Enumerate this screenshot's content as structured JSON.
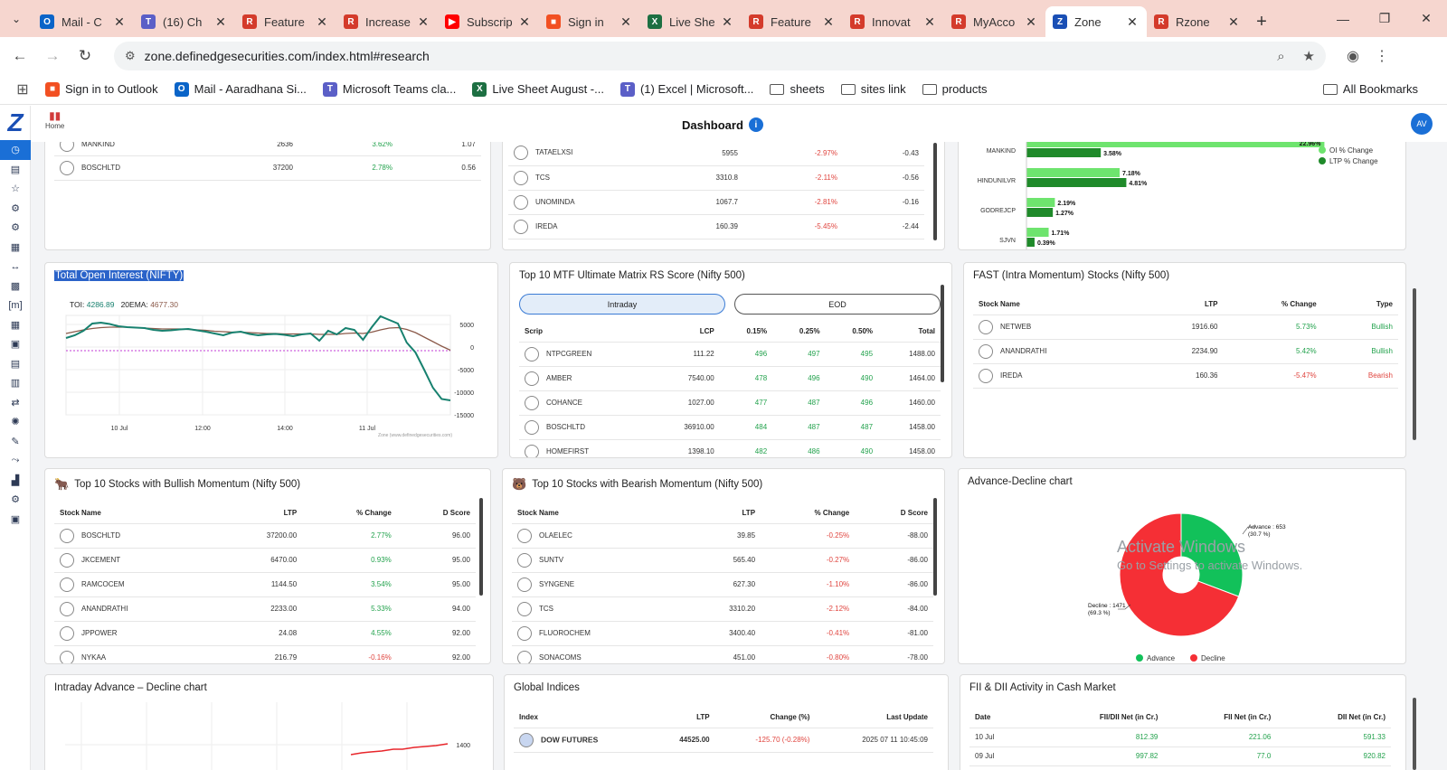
{
  "browser": {
    "tabs": [
      {
        "label": "Mail - C",
        "icon": "outlook-icon",
        "color": "#0a64c8",
        "glyph": "O"
      },
      {
        "label": "(16) Ch",
        "icon": "teams-icon",
        "color": "#5b5fc7",
        "glyph": "T"
      },
      {
        "label": "Feature",
        "icon": "zone-app-icon",
        "color": "#d43b2b",
        "glyph": "R"
      },
      {
        "label": "Increase",
        "icon": "zone-app-icon",
        "color": "#d43b2b",
        "glyph": "R"
      },
      {
        "label": "Subscrip",
        "icon": "youtube-icon",
        "color": "#ff0000",
        "glyph": "▶"
      },
      {
        "label": "Sign in",
        "icon": "microsoft-icon",
        "color": "#f25022",
        "glyph": "■"
      },
      {
        "label": "Live She",
        "icon": "excel-icon",
        "color": "#1d6f42",
        "glyph": "X"
      },
      {
        "label": "Feature",
        "icon": "zone-app-icon",
        "color": "#d43b2b",
        "glyph": "R"
      },
      {
        "label": "Innovat",
        "icon": "zone-app-icon",
        "color": "#d43b2b",
        "glyph": "R"
      },
      {
        "label": "MyAcco",
        "icon": "zone-app-icon",
        "color": "#d43b2b",
        "glyph": "R"
      },
      {
        "label": "Zone",
        "icon": "zone-logo-icon",
        "color": "#1a4fb5",
        "glyph": "Z",
        "active": true
      },
      {
        "label": "Rzone",
        "icon": "zone-app-icon",
        "color": "#d43b2b",
        "glyph": "R"
      }
    ],
    "url": "zone.definedgesecurities.com/index.html#research",
    "bookmarks": [
      {
        "label": "Sign in to Outlook",
        "type": "site",
        "color": "#f25022",
        "glyph": "■"
      },
      {
        "label": "Mail - Aaradhana Si...",
        "type": "site",
        "color": "#0a64c8",
        "glyph": "O"
      },
      {
        "label": "Microsoft Teams cla...",
        "type": "site",
        "color": "#5b5fc7",
        "glyph": "T"
      },
      {
        "label": "Live Sheet August -...",
        "type": "site",
        "color": "#1d6f42",
        "glyph": "X"
      },
      {
        "label": "(1) Excel | Microsoft...",
        "type": "site",
        "color": "#5b5fc7",
        "glyph": "T"
      },
      {
        "label": "sheets",
        "type": "folder"
      },
      {
        "label": "sites link",
        "type": "folder"
      },
      {
        "label": "products",
        "type": "folder"
      }
    ],
    "all_bookmarks": "All Bookmarks"
  },
  "app": {
    "home_label": "Home",
    "title": "Dashboard",
    "avatar": "AV"
  },
  "top_left_partial": {
    "rows": [
      {
        "name": "MANKIND",
        "ltp": "2636",
        "chg": "3.62%",
        "score": "1.07"
      },
      {
        "name": "BOSCHLTD",
        "ltp": "37200",
        "chg": "2.78%",
        "score": "0.56"
      }
    ]
  },
  "top_mid_partial": {
    "rows": [
      {
        "name": "TATAELXSI",
        "ltp": "5955",
        "chg": "-2.97%",
        "score": "-0.43"
      },
      {
        "name": "TCS",
        "ltp": "3310.8",
        "chg": "-2.11%",
        "score": "-0.56"
      },
      {
        "name": "UNOMINDA",
        "ltp": "1067.7",
        "chg": "-2.81%",
        "score": "-0.16"
      },
      {
        "name": "IREDA",
        "ltp": "160.39",
        "chg": "-5.45%",
        "score": "-2.44"
      }
    ]
  },
  "oi_bar_chart": {
    "legend": [
      "OI % Change",
      "LTP % Change"
    ],
    "colors": {
      "oi": "#6ee46e",
      "ltp": "#1f8a2a"
    },
    "rows": [
      {
        "name": "MANKIND",
        "oi": 22.96,
        "ltp": 3.58,
        "oi_label": "22.96%",
        "ltp_label": "3.58%"
      },
      {
        "name": "HINDUNILVR",
        "oi": 7.18,
        "ltp": 4.81,
        "oi_label": "7.18%",
        "ltp_label": "4.81%"
      },
      {
        "name": "GODREJCP",
        "oi": 2.19,
        "ltp": 1.27,
        "oi_label": "2.19%",
        "ltp_label": "1.27%"
      },
      {
        "name": "SJVN",
        "oi": 1.71,
        "ltp": 0.39,
        "oi_label": "1.71%",
        "ltp_label": "0.39%"
      }
    ]
  },
  "toi": {
    "title": "Total Open Interest (NIFTY)",
    "toi_label": "TOI:",
    "toi_value": "4286.89",
    "ema_label": "20EMA:",
    "ema_value": "4677.30",
    "x_ticks": [
      "10 Jul",
      "12:00",
      "14:00",
      "11 Jul"
    ],
    "y_ticks": [
      "5000",
      "0",
      "-5000",
      "-10000",
      "-15000"
    ],
    "credit": "Zone (www.definedgesecurities.com)",
    "colors": {
      "toi": "#17816f",
      "ema": "#8b5a4a",
      "zero": "#c23bd4"
    },
    "toi_series": [
      2000,
      2600,
      3600,
      5200,
      5400,
      5100,
      4600,
      4400,
      4300,
      4200,
      3800,
      3600,
      3700,
      3900,
      4000,
      3700,
      3400,
      3000,
      2600,
      3200,
      3400,
      2900,
      2600,
      2800,
      2900,
      2700,
      2400,
      2800,
      3000,
      1400,
      3600,
      2800,
      4200,
      3800,
      1600,
      4400,
      6800,
      6000,
      5200,
      1000,
      -1200,
      -5000,
      -9000,
      -11500,
      -11800
    ],
    "ema_series": [
      3000,
      3400,
      3800,
      4100,
      4300,
      4400,
      4400,
      4400,
      4300,
      4200,
      4100,
      4000,
      4000,
      4000,
      3900,
      3800,
      3700,
      3500,
      3400,
      3300,
      3300,
      3200,
      3100,
      3000,
      3000,
      2900,
      2900,
      2900,
      2900,
      2800,
      2800,
      2800,
      3000,
      3100,
      3000,
      3300,
      3800,
      4200,
      4300,
      3900,
      3200,
      2200,
      1200,
      200,
      -700
    ]
  },
  "mtf": {
    "title": "Top 10 MTF Ultimate Matrix RS Score (Nifty 500)",
    "toggle_intraday": "Intraday",
    "toggle_eod": "EOD",
    "headers": [
      "Scrip",
      "LCP",
      "0.15%",
      "0.25%",
      "0.50%",
      "Total"
    ],
    "rows": [
      {
        "name": "NTPCGREEN",
        "lcp": "111.22",
        "a": "496",
        "b": "497",
        "c": "495",
        "total": "1488.00"
      },
      {
        "name": "AMBER",
        "lcp": "7540.00",
        "a": "478",
        "b": "496",
        "c": "490",
        "total": "1464.00"
      },
      {
        "name": "COHANCE",
        "lcp": "1027.00",
        "a": "477",
        "b": "487",
        "c": "496",
        "total": "1460.00"
      },
      {
        "name": "BOSCHLTD",
        "lcp": "36910.00",
        "a": "484",
        "b": "487",
        "c": "487",
        "total": "1458.00"
      },
      {
        "name": "HOMEFIRST",
        "lcp": "1398.10",
        "a": "482",
        "b": "486",
        "c": "490",
        "total": "1458.00"
      }
    ]
  },
  "fast": {
    "title": "FAST (Intra Momentum) Stocks (Nifty 500)",
    "headers": [
      "Stock Name",
      "LTP",
      "% Change",
      "Type"
    ],
    "rows": [
      {
        "name": "NETWEB",
        "ltp": "1916.60",
        "chg": "5.73%",
        "type": "Bullish"
      },
      {
        "name": "ANANDRATHI",
        "ltp": "2234.90",
        "chg": "5.42%",
        "type": "Bullish"
      },
      {
        "name": "IREDA",
        "ltp": "160.36",
        "chg": "-5.47%",
        "type": "Bearish"
      }
    ]
  },
  "bullish": {
    "title": "Top 10 Stocks with Bullish Momentum (Nifty 500)",
    "headers": [
      "Stock Name",
      "LTP",
      "% Change",
      "D Score"
    ],
    "rows": [
      {
        "name": "BOSCHLTD",
        "ltp": "37200.00",
        "chg": "2.77%",
        "d": "96.00"
      },
      {
        "name": "JKCEMENT",
        "ltp": "6470.00",
        "chg": "0.93%",
        "d": "95.00"
      },
      {
        "name": "RAMCOCEM",
        "ltp": "1144.50",
        "chg": "3.54%",
        "d": "95.00"
      },
      {
        "name": "ANANDRATHI",
        "ltp": "2233.00",
        "chg": "5.33%",
        "d": "94.00"
      },
      {
        "name": "JPPOWER",
        "ltp": "24.08",
        "chg": "4.55%",
        "d": "92.00"
      },
      {
        "name": "NYKAA",
        "ltp": "216.79",
        "chg": "-0.16%",
        "d": "92.00"
      }
    ]
  },
  "bearish": {
    "title": "Top 10 Stocks with Bearish Momentum (Nifty 500)",
    "headers": [
      "Stock Name",
      "LTP",
      "% Change",
      "D Score"
    ],
    "rows": [
      {
        "name": "OLAELEC",
        "ltp": "39.85",
        "chg": "-0.25%",
        "d": "-88.00"
      },
      {
        "name": "SUNTV",
        "ltp": "565.40",
        "chg": "-0.27%",
        "d": "-86.00"
      },
      {
        "name": "SYNGENE",
        "ltp": "627.30",
        "chg": "-1.10%",
        "d": "-86.00"
      },
      {
        "name": "TCS",
        "ltp": "3310.20",
        "chg": "-2.12%",
        "d": "-84.00"
      },
      {
        "name": "FLUOROCHEM",
        "ltp": "3400.40",
        "chg": "-0.41%",
        "d": "-81.00"
      },
      {
        "name": "SONACOMS",
        "ltp": "451.00",
        "chg": "-0.80%",
        "d": "-78.00"
      }
    ]
  },
  "adv_dec": {
    "title": "Advance-Decline chart",
    "advance_value": 653,
    "decline_value": 1471,
    "advance_label": "Advance : 653",
    "advance_pct": "(30.7 %)",
    "decline_label": "Decline : 1471",
    "decline_pct": "(69.3 %)",
    "legend": [
      "Advance",
      "Decline"
    ],
    "colors": {
      "advance": "#12c15a",
      "decline": "#f52f35"
    }
  },
  "intraday_ad": {
    "title": "Intraday Advance – Decline chart",
    "y_tick": "1400",
    "line_color": "#e8262b"
  },
  "global": {
    "title": "Global Indices",
    "headers": [
      "Index",
      "LTP",
      "Change (%)",
      "Last Update"
    ],
    "rows": [
      {
        "name": "DOW FUTURES",
        "ltp": "44525.00",
        "chg": "-125.70 (-0.28%)",
        "updated": "2025 07 11 10:45:09"
      }
    ]
  },
  "fii": {
    "title": "FII & DII Activity in Cash Market",
    "headers": [
      "Date",
      "FII/DII Net (in Cr.)",
      "FII Net (in Cr.)",
      "DII Net (in Cr.)"
    ],
    "rows": [
      {
        "date": "10 Jul",
        "net": "812.39",
        "fii": "221.06",
        "dii": "591.33"
      },
      {
        "date": "09 Jul",
        "net": "997.82",
        "fii": "77.0",
        "dii": "920.82"
      }
    ]
  },
  "watermark": {
    "line1": "Activate Windows",
    "line2": "Go to Settings to activate Windows."
  }
}
